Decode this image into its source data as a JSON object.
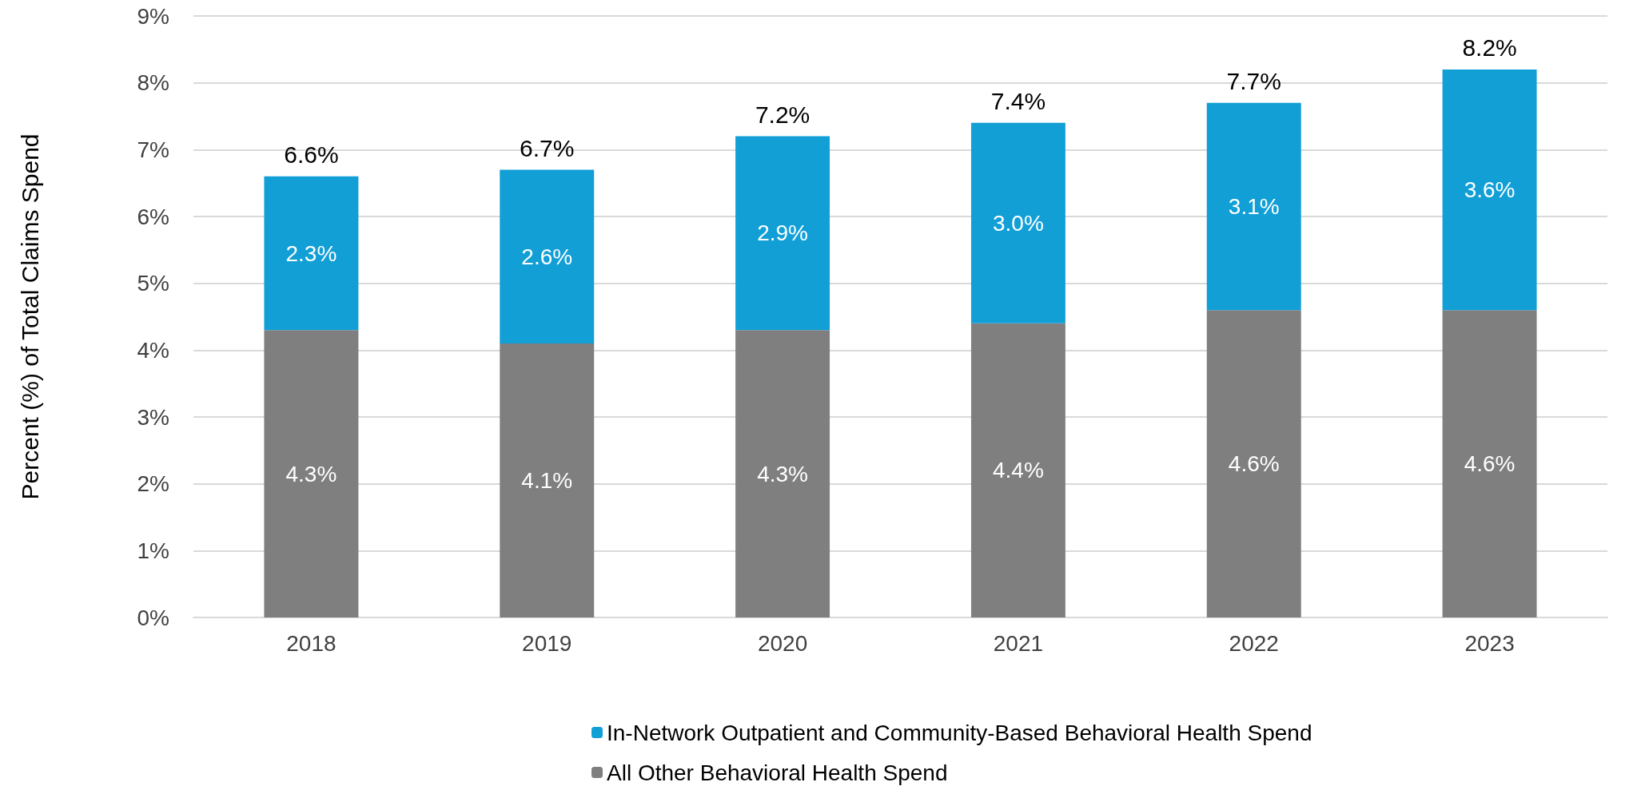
{
  "chart_data": {
    "type": "bar",
    "stacked": true,
    "ylabel": "Percent (%) of Total Claims Spend",
    "categories": [
      "2018",
      "2019",
      "2020",
      "2021",
      "2022",
      "2023"
    ],
    "series": [
      {
        "name": "All Other Behavioral Health Spend",
        "color": "#7f7f7f",
        "values": [
          4.3,
          4.1,
          4.3,
          4.4,
          4.6,
          4.6
        ],
        "value_labels": [
          "4.3%",
          "4.1%",
          "4.3%",
          "4.4%",
          "4.6%",
          "4.6%"
        ]
      },
      {
        "name": "In-Network Outpatient and Community-Based Behavioral Health Spend",
        "color": "#119fd6",
        "values": [
          2.3,
          2.6,
          2.9,
          3.0,
          3.1,
          3.6
        ],
        "value_labels": [
          "2.3%",
          "2.6%",
          "2.9%",
          "3.0%",
          "3.1%",
          "3.6%"
        ]
      }
    ],
    "totals": [
      "6.6%",
      "6.7%",
      "7.2%",
      "7.4%",
      "7.7%",
      "8.2%"
    ],
    "ylim": [
      0,
      9
    ],
    "yticks": [
      {
        "value": 0,
        "label": "0%"
      },
      {
        "value": 1,
        "label": "1%"
      },
      {
        "value": 2,
        "label": "2%"
      },
      {
        "value": 3,
        "label": "3%"
      },
      {
        "value": 4,
        "label": "4%"
      },
      {
        "value": 5,
        "label": "5%"
      },
      {
        "value": 6,
        "label": "6%"
      },
      {
        "value": 7,
        "label": "7%"
      },
      {
        "value": 8,
        "label": "8%"
      },
      {
        "value": 9,
        "label": "9%"
      }
    ],
    "grid": "y",
    "legend": "bottom"
  }
}
